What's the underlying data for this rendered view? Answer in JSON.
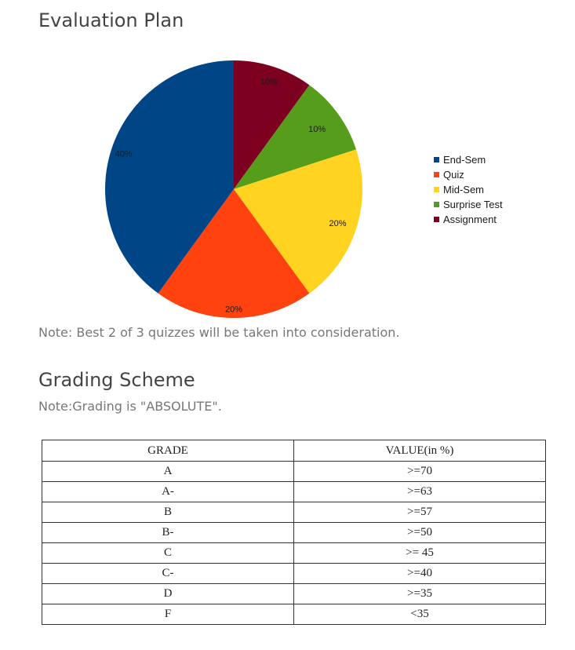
{
  "evaluation": {
    "title": "Evaluation Plan",
    "note": "Note: Best 2 of 3 quizzes will be taken into consideration."
  },
  "chart_data": {
    "type": "pie",
    "title": "",
    "slices": [
      {
        "name": "End-Sem",
        "value": 40,
        "label": "40%",
        "color": "#004586"
      },
      {
        "name": "Quiz",
        "value": 20,
        "label": "20%",
        "color": "#ff420e"
      },
      {
        "name": "Mid-Sem",
        "value": 20,
        "label": "20%",
        "color": "#ffd320"
      },
      {
        "name": "Surprise Test",
        "value": 10,
        "label": "10%",
        "color": "#579d1c"
      },
      {
        "name": "Assignment",
        "value": 10,
        "label": "10%",
        "color": "#7e0021"
      }
    ],
    "legend_position": "right"
  },
  "grading": {
    "title": "Grading Scheme",
    "note": "Note:Grading is \"ABSOLUTE\".",
    "headers": [
      "GRADE",
      "VALUE(in %)"
    ],
    "rows": [
      [
        "A",
        ">=70"
      ],
      [
        "A-",
        ">=63"
      ],
      [
        "B",
        ">=57"
      ],
      [
        "B-",
        ">=50"
      ],
      [
        "C",
        ">= 45"
      ],
      [
        "C-",
        ">=40"
      ],
      [
        "D",
        ">=35"
      ],
      [
        "F",
        "<35"
      ]
    ]
  }
}
